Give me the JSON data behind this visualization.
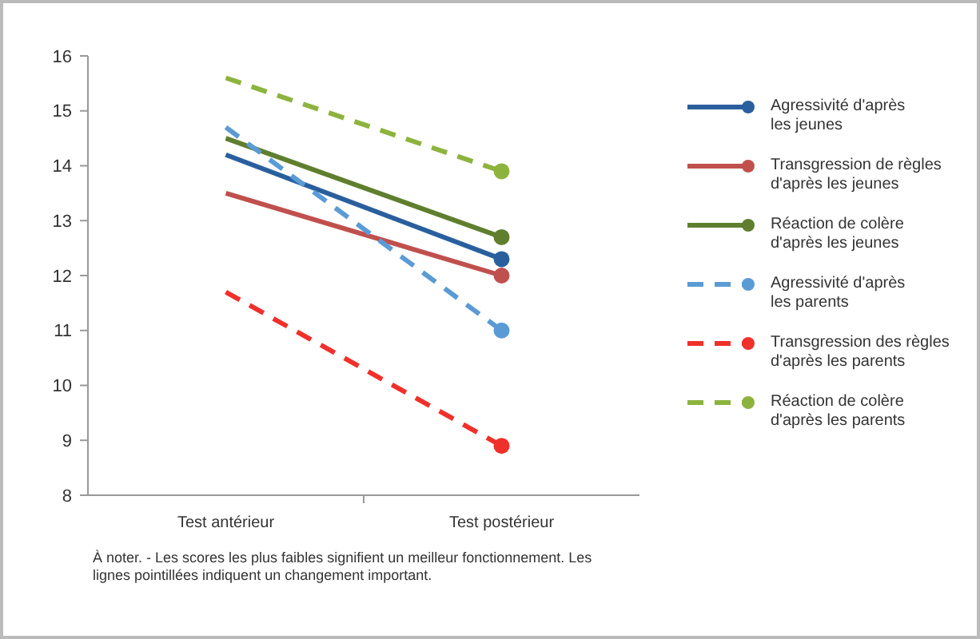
{
  "chart_data": {
    "type": "line",
    "categories": [
      "Test antérieur",
      "Test postérieur"
    ],
    "ylim": [
      8,
      16
    ],
    "yticks": [
      8,
      9,
      10,
      11,
      12,
      13,
      14,
      15,
      16
    ],
    "grid": false,
    "legend": "right",
    "marker": "circle",
    "series": [
      {
        "name": "Agressivité d'après\nles jeunes",
        "color": "#2a5f9e",
        "values": [
          14.2,
          12.3
        ],
        "line_style": "solid"
      },
      {
        "name": "Transgression de règles\nd'après les jeunes",
        "color": "#c0504d",
        "values": [
          13.5,
          12.0
        ],
        "line_style": "solid"
      },
      {
        "name": "Réaction de colère\nd'après les jeunes",
        "color": "#5f7f2f",
        "values": [
          14.5,
          12.7
        ],
        "line_style": "solid"
      },
      {
        "name": "Agressivité d'après\nles parents",
        "color": "#5b9bd5",
        "values": [
          14.7,
          11.0
        ],
        "line_style": "dashed"
      },
      {
        "name": "Transgression des règles\nd'après les parents",
        "color": "#f0302a",
        "values": [
          11.7,
          8.9
        ],
        "line_style": "dashed"
      },
      {
        "name": "Réaction de colère\nd'après les parents",
        "color": "#8db33f",
        "values": [
          15.6,
          13.9
        ],
        "line_style": "dashed"
      }
    ],
    "annotations": [
      "À noter. - Les scores les plus faibles signifient un meilleur fonctionnement. Les\nlignes pointillées indiquent un changement important."
    ]
  }
}
